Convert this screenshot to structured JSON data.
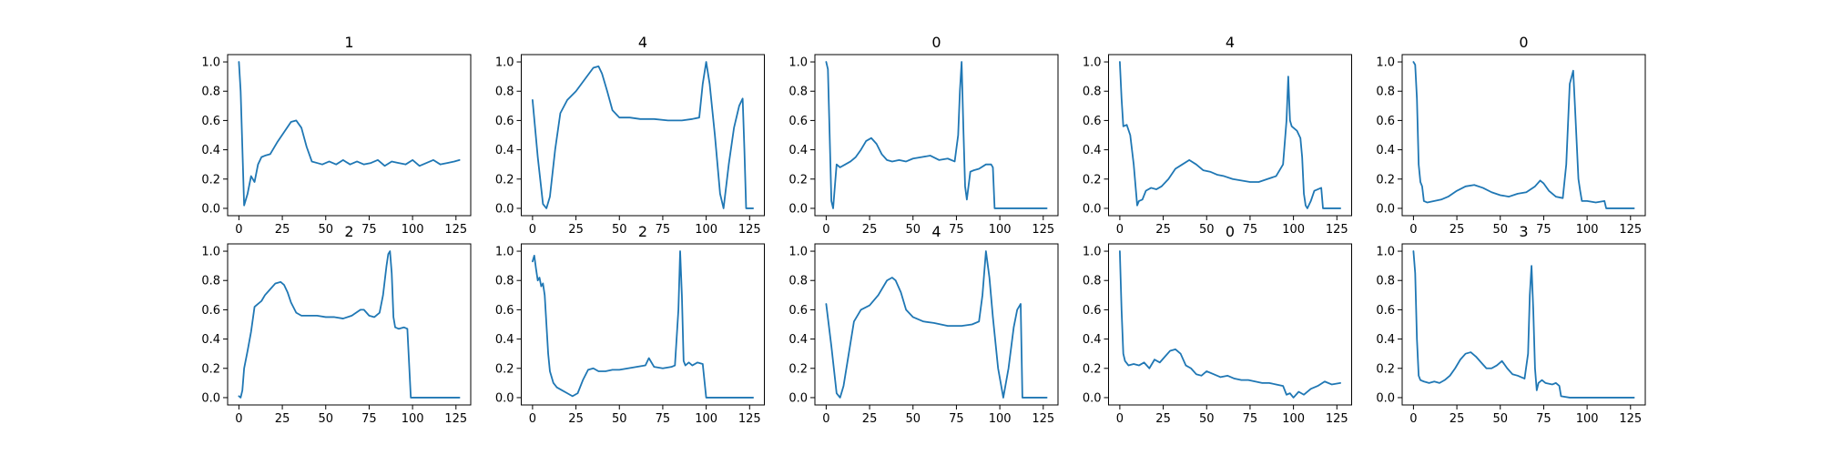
{
  "figure": {
    "background": "#ffffff",
    "line_color": "#1f77b4"
  },
  "chart_data": [
    {
      "type": "line",
      "title": "1",
      "xlim": [
        -6.5,
        133.5
      ],
      "ylim": [
        -0.05,
        1.05
      ],
      "xticks": [
        0,
        25,
        50,
        75,
        100,
        125
      ],
      "yticks": [
        "0.0",
        "0.2",
        "0.4",
        "0.6",
        "0.8",
        "1.0"
      ],
      "grid": false,
      "x": [
        0,
        1,
        3,
        5,
        7,
        9,
        11,
        13,
        15,
        18,
        22,
        26,
        30,
        33,
        36,
        39,
        42,
        45,
        48,
        52,
        56,
        60,
        64,
        68,
        72,
        76,
        80,
        84,
        88,
        92,
        96,
        100,
        104,
        108,
        112,
        116,
        120,
        124,
        127
      ],
      "y": [
        1.0,
        0.8,
        0.02,
        0.1,
        0.22,
        0.18,
        0.3,
        0.35,
        0.36,
        0.37,
        0.45,
        0.52,
        0.59,
        0.6,
        0.55,
        0.42,
        0.32,
        0.31,
        0.3,
        0.32,
        0.3,
        0.33,
        0.3,
        0.32,
        0.3,
        0.31,
        0.33,
        0.29,
        0.32,
        0.31,
        0.3,
        0.33,
        0.29,
        0.31,
        0.33,
        0.3,
        0.31,
        0.32,
        0.33
      ]
    },
    {
      "type": "line",
      "title": "4",
      "xlim": [
        -6.5,
        133.5
      ],
      "ylim": [
        -0.05,
        1.05
      ],
      "xticks": [
        0,
        25,
        50,
        75,
        100,
        125
      ],
      "yticks": [
        "0.0",
        "0.2",
        "0.4",
        "0.6",
        "0.8",
        "1.0"
      ],
      "grid": false,
      "x": [
        0,
        3,
        6,
        8,
        10,
        13,
        16,
        20,
        25,
        30,
        35,
        38,
        40,
        43,
        46,
        50,
        56,
        62,
        70,
        78,
        86,
        92,
        96,
        98,
        100,
        102,
        105,
        108,
        110,
        113,
        116,
        119,
        121,
        122,
        123,
        124,
        125,
        127
      ],
      "y": [
        0.74,
        0.35,
        0.03,
        0.0,
        0.08,
        0.4,
        0.65,
        0.74,
        0.8,
        0.88,
        0.96,
        0.97,
        0.92,
        0.8,
        0.67,
        0.62,
        0.62,
        0.61,
        0.61,
        0.6,
        0.6,
        0.61,
        0.62,
        0.85,
        1.0,
        0.85,
        0.5,
        0.1,
        0.0,
        0.3,
        0.55,
        0.7,
        0.75,
        0.4,
        0.0,
        0.0,
        0.0,
        0.0
      ]
    },
    {
      "type": "line",
      "title": "0",
      "xlim": [
        -6.5,
        133.5
      ],
      "ylim": [
        -0.05,
        1.05
      ],
      "xticks": [
        0,
        25,
        50,
        75,
        100,
        125
      ],
      "yticks": [
        "0.0",
        "0.2",
        "0.4",
        "0.6",
        "0.8",
        "1.0"
      ],
      "grid": false,
      "x": [
        0,
        1,
        2,
        3,
        4,
        6,
        8,
        11,
        14,
        17,
        20,
        23,
        26,
        29,
        32,
        35,
        38,
        42,
        46,
        50,
        55,
        60,
        65,
        70,
        74,
        76,
        77,
        78,
        79,
        80,
        81,
        83,
        85,
        88,
        92,
        95,
        96,
        97,
        100,
        110,
        127
      ],
      "y": [
        1.0,
        0.95,
        0.5,
        0.05,
        0.0,
        0.3,
        0.28,
        0.3,
        0.32,
        0.35,
        0.4,
        0.46,
        0.48,
        0.44,
        0.37,
        0.33,
        0.32,
        0.33,
        0.32,
        0.34,
        0.35,
        0.36,
        0.33,
        0.34,
        0.32,
        0.5,
        0.8,
        1.0,
        0.55,
        0.15,
        0.06,
        0.25,
        0.26,
        0.27,
        0.3,
        0.3,
        0.28,
        0.0,
        0.0,
        0.0,
        0.0
      ]
    },
    {
      "type": "line",
      "title": "4",
      "xlim": [
        -6.5,
        133.5
      ],
      "ylim": [
        -0.05,
        1.05
      ],
      "xticks": [
        0,
        25,
        50,
        75,
        100,
        125
      ],
      "yticks": [
        "0.0",
        "0.2",
        "0.4",
        "0.6",
        "0.8",
        "1.0"
      ],
      "grid": false,
      "x": [
        0,
        1,
        2,
        4,
        6,
        8,
        10,
        11,
        13,
        15,
        18,
        21,
        24,
        28,
        32,
        36,
        40,
        44,
        48,
        52,
        56,
        60,
        65,
        70,
        75,
        80,
        85,
        90,
        94,
        96,
        97,
        98,
        99,
        100,
        102,
        104,
        105,
        106,
        107,
        108,
        110,
        112,
        114,
        116,
        117,
        118,
        120,
        127
      ],
      "y": [
        1.0,
        0.75,
        0.56,
        0.57,
        0.5,
        0.3,
        0.02,
        0.05,
        0.06,
        0.12,
        0.14,
        0.13,
        0.15,
        0.2,
        0.27,
        0.3,
        0.33,
        0.3,
        0.26,
        0.25,
        0.23,
        0.22,
        0.2,
        0.19,
        0.18,
        0.18,
        0.2,
        0.22,
        0.3,
        0.6,
        0.9,
        0.6,
        0.56,
        0.55,
        0.53,
        0.48,
        0.35,
        0.1,
        0.02,
        0.0,
        0.05,
        0.12,
        0.13,
        0.14,
        0.0,
        0.0,
        0.0,
        0.0
      ]
    },
    {
      "type": "line",
      "title": "0",
      "xlim": [
        -6.5,
        133.5
      ],
      "ylim": [
        -0.05,
        1.05
      ],
      "xticks": [
        0,
        25,
        50,
        75,
        100,
        125
      ],
      "yticks": [
        "0.0",
        "0.2",
        "0.4",
        "0.6",
        "0.8",
        "1.0"
      ],
      "grid": false,
      "x": [
        0,
        1,
        2,
        3,
        4,
        5,
        6,
        8,
        12,
        16,
        20,
        25,
        30,
        35,
        40,
        45,
        50,
        55,
        60,
        65,
        70,
        73,
        75,
        78,
        82,
        86,
        88,
        90,
        92,
        93,
        95,
        96,
        97,
        100,
        105,
        110,
        111,
        127
      ],
      "y": [
        1.0,
        0.98,
        0.75,
        0.3,
        0.18,
        0.15,
        0.05,
        0.04,
        0.05,
        0.06,
        0.08,
        0.12,
        0.15,
        0.16,
        0.14,
        0.11,
        0.09,
        0.08,
        0.1,
        0.11,
        0.15,
        0.19,
        0.17,
        0.12,
        0.08,
        0.07,
        0.3,
        0.85,
        0.94,
        0.7,
        0.2,
        0.12,
        0.05,
        0.05,
        0.04,
        0.05,
        0.0,
        0.0
      ]
    },
    {
      "type": "line",
      "title": "2",
      "xlim": [
        -6.5,
        133.5
      ],
      "ylim": [
        -0.05,
        1.05
      ],
      "xticks": [
        0,
        25,
        50,
        75,
        100,
        125
      ],
      "yticks": [
        "0.0",
        "0.2",
        "0.4",
        "0.6",
        "0.8",
        "1.0"
      ],
      "grid": false,
      "x": [
        0,
        1,
        2,
        3,
        5,
        7,
        9,
        11,
        13,
        15,
        18,
        21,
        24,
        26,
        28,
        30,
        33,
        36,
        40,
        45,
        50,
        55,
        60,
        65,
        70,
        72,
        75,
        78,
        81,
        83,
        85,
        86,
        87,
        88,
        89,
        90,
        92,
        95,
        97,
        99,
        100,
        110,
        127
      ],
      "y": [
        0.01,
        0.0,
        0.05,
        0.2,
        0.32,
        0.45,
        0.62,
        0.64,
        0.66,
        0.7,
        0.74,
        0.78,
        0.79,
        0.77,
        0.72,
        0.65,
        0.58,
        0.56,
        0.56,
        0.56,
        0.55,
        0.55,
        0.54,
        0.56,
        0.6,
        0.6,
        0.56,
        0.55,
        0.58,
        0.7,
        0.9,
        0.98,
        1.0,
        0.85,
        0.55,
        0.48,
        0.47,
        0.48,
        0.47,
        0.0,
        0.0,
        0.0,
        0.0
      ]
    },
    {
      "type": "line",
      "title": "2",
      "xlim": [
        -6.5,
        133.5
      ],
      "ylim": [
        -0.05,
        1.05
      ],
      "xticks": [
        0,
        25,
        50,
        75,
        100,
        125
      ],
      "yticks": [
        "0.0",
        "0.2",
        "0.4",
        "0.6",
        "0.8",
        "1.0"
      ],
      "grid": false,
      "x": [
        0,
        1,
        2,
        3,
        4,
        5,
        6,
        7,
        8,
        9,
        10,
        12,
        14,
        17,
        20,
        23,
        26,
        29,
        32,
        35,
        38,
        42,
        46,
        50,
        55,
        60,
        65,
        67,
        70,
        75,
        80,
        82,
        84,
        85,
        86,
        87,
        88,
        90,
        92,
        95,
        98,
        100,
        102,
        110,
        127
      ],
      "y": [
        0.93,
        0.97,
        0.88,
        0.8,
        0.82,
        0.76,
        0.78,
        0.7,
        0.5,
        0.3,
        0.18,
        0.1,
        0.07,
        0.05,
        0.03,
        0.01,
        0.03,
        0.12,
        0.19,
        0.2,
        0.18,
        0.18,
        0.19,
        0.19,
        0.2,
        0.21,
        0.22,
        0.27,
        0.21,
        0.2,
        0.21,
        0.22,
        0.6,
        1.0,
        0.7,
        0.25,
        0.22,
        0.24,
        0.22,
        0.24,
        0.23,
        0.0,
        0.0,
        0.0,
        0.0
      ]
    },
    {
      "type": "line",
      "title": "4",
      "xlim": [
        -6.5,
        133.5
      ],
      "ylim": [
        -0.05,
        1.05
      ],
      "xticks": [
        0,
        25,
        50,
        75,
        100,
        125
      ],
      "yticks": [
        "0.0",
        "0.2",
        "0.4",
        "0.6",
        "0.8",
        "1.0"
      ],
      "grid": false,
      "x": [
        0,
        3,
        6,
        8,
        10,
        13,
        16,
        20,
        25,
        30,
        35,
        38,
        40,
        43,
        46,
        50,
        56,
        62,
        70,
        78,
        84,
        88,
        90,
        92,
        94,
        96,
        99,
        102,
        105,
        108,
        110,
        112,
        113,
        115,
        117,
        127
      ],
      "y": [
        0.64,
        0.35,
        0.03,
        0.0,
        0.08,
        0.3,
        0.52,
        0.6,
        0.63,
        0.7,
        0.8,
        0.82,
        0.8,
        0.72,
        0.6,
        0.55,
        0.52,
        0.51,
        0.49,
        0.49,
        0.5,
        0.52,
        0.7,
        1.0,
        0.82,
        0.55,
        0.2,
        0.0,
        0.2,
        0.48,
        0.6,
        0.64,
        0.0,
        0.0,
        0.0,
        0.0
      ]
    },
    {
      "type": "line",
      "title": "0",
      "xlim": [
        -6.5,
        133.5
      ],
      "ylim": [
        -0.05,
        1.05
      ],
      "xticks": [
        0,
        25,
        50,
        75,
        100,
        125
      ],
      "yticks": [
        "0.0",
        "0.2",
        "0.4",
        "0.6",
        "0.8",
        "1.0"
      ],
      "grid": false,
      "x": [
        0,
        1,
        2,
        3,
        5,
        8,
        11,
        14,
        17,
        20,
        23,
        26,
        29,
        32,
        35,
        38,
        41,
        44,
        47,
        50,
        54,
        58,
        62,
        66,
        70,
        74,
        78,
        82,
        86,
        90,
        94,
        96,
        98,
        100,
        103,
        106,
        110,
        114,
        118,
        122,
        127
      ],
      "y": [
        1.0,
        0.6,
        0.3,
        0.25,
        0.22,
        0.23,
        0.22,
        0.24,
        0.2,
        0.26,
        0.24,
        0.28,
        0.32,
        0.33,
        0.3,
        0.22,
        0.2,
        0.16,
        0.15,
        0.18,
        0.16,
        0.14,
        0.15,
        0.13,
        0.12,
        0.12,
        0.11,
        0.1,
        0.1,
        0.09,
        0.08,
        0.02,
        0.03,
        0.0,
        0.04,
        0.02,
        0.06,
        0.08,
        0.11,
        0.09,
        0.1
      ]
    },
    {
      "type": "line",
      "title": "3",
      "xlim": [
        -6.5,
        133.5
      ],
      "ylim": [
        -0.05,
        1.05
      ],
      "xticks": [
        0,
        25,
        50,
        75,
        100,
        125
      ],
      "yticks": [
        "0.0",
        "0.2",
        "0.4",
        "0.6",
        "0.8",
        "1.0"
      ],
      "grid": false,
      "x": [
        0,
        1,
        2,
        3,
        4,
        6,
        9,
        12,
        15,
        18,
        21,
        24,
        27,
        30,
        33,
        36,
        39,
        42,
        45,
        48,
        51,
        54,
        57,
        60,
        64,
        66,
        67,
        68,
        69,
        70,
        71,
        72,
        74,
        76,
        80,
        82,
        84,
        85,
        90,
        127
      ],
      "y": [
        1.0,
        0.85,
        0.4,
        0.15,
        0.12,
        0.11,
        0.1,
        0.11,
        0.1,
        0.12,
        0.15,
        0.2,
        0.26,
        0.3,
        0.31,
        0.28,
        0.24,
        0.2,
        0.2,
        0.22,
        0.25,
        0.2,
        0.16,
        0.15,
        0.13,
        0.3,
        0.7,
        0.9,
        0.6,
        0.2,
        0.05,
        0.1,
        0.12,
        0.1,
        0.09,
        0.1,
        0.08,
        0.01,
        0.0,
        0.0
      ]
    }
  ]
}
